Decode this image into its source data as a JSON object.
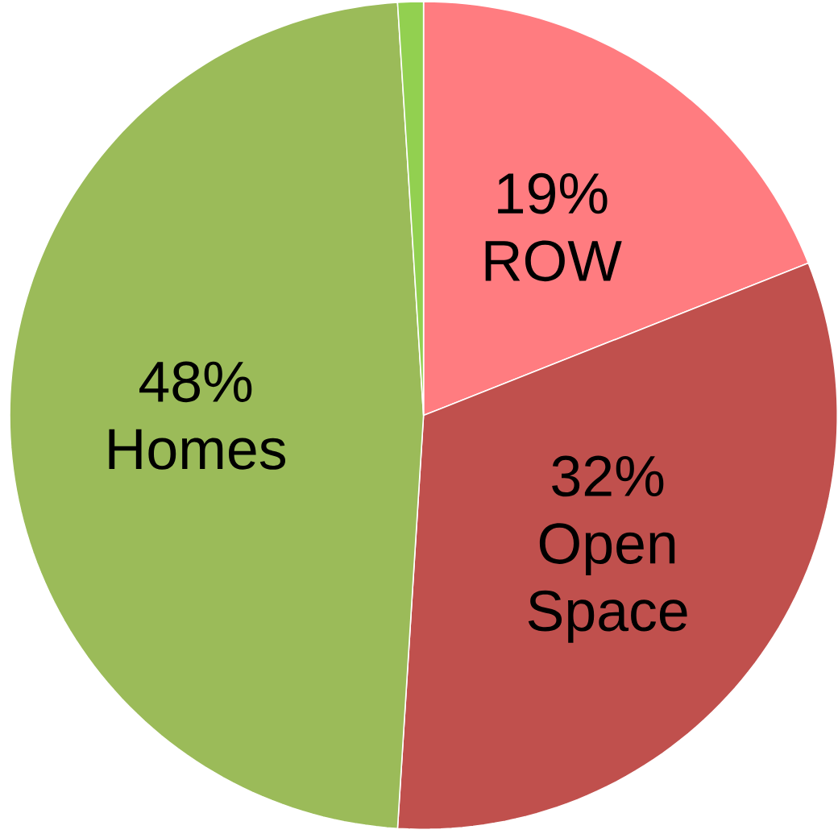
{
  "chart_data": {
    "type": "pie",
    "categories": [
      "ROW",
      "Open Space",
      "Homes",
      null
    ],
    "values": [
      19,
      32,
      48,
      1
    ],
    "value_labels": [
      "19%",
      "32%",
      "48%",
      null
    ],
    "colors": [
      "#ff7c80",
      "#c0504d",
      "#9bbb59",
      "#92d050"
    ]
  }
}
